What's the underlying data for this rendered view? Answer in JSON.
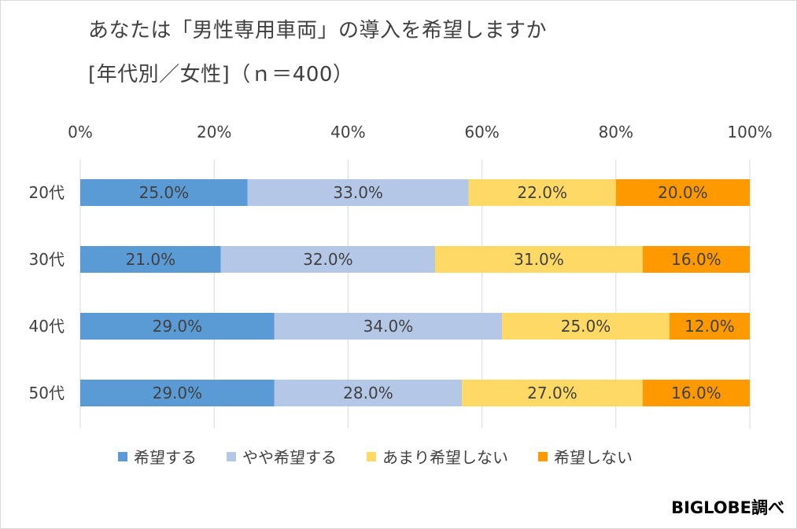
{
  "chart_data": {
    "type": "bar",
    "orientation": "horizontal",
    "stacked": true,
    "title": "あなたは「男性専用車両」の導入を希望しますか",
    "subtitle": "[年代別／女性]（ｎ＝400）",
    "categories": [
      "20代",
      "30代",
      "40代",
      "50代"
    ],
    "xlim": [
      0,
      100
    ],
    "x_ticks": [
      "0%",
      "20%",
      "40%",
      "60%",
      "80%",
      "100%"
    ],
    "grid": true,
    "legend_position": "bottom",
    "series": [
      {
        "name": "希望する",
        "color": "#5b9bd5",
        "values": [
          25.0,
          21.0,
          29.0,
          29.0
        ],
        "labels": [
          "25.0%",
          "21.0%",
          "29.0%",
          "29.0%"
        ]
      },
      {
        "name": "やや希望する",
        "color": "#b4c7e7",
        "values": [
          33.0,
          32.0,
          34.0,
          28.0
        ],
        "labels": [
          "33.0%",
          "32.0%",
          "34.0%",
          "28.0%"
        ]
      },
      {
        "name": "あまり希望しない",
        "color": "#ffd966",
        "values": [
          22.0,
          31.0,
          25.0,
          27.0
        ],
        "labels": [
          "22.0%",
          "31.0%",
          "25.0%",
          "27.0%"
        ]
      },
      {
        "name": "希望しない",
        "color": "#ff9900",
        "values": [
          20.0,
          16.0,
          12.0,
          16.0
        ],
        "labels": [
          "20.0%",
          "16.0%",
          "12.0%",
          "16.0%"
        ]
      }
    ]
  },
  "credit": "BIGLOBE調べ"
}
